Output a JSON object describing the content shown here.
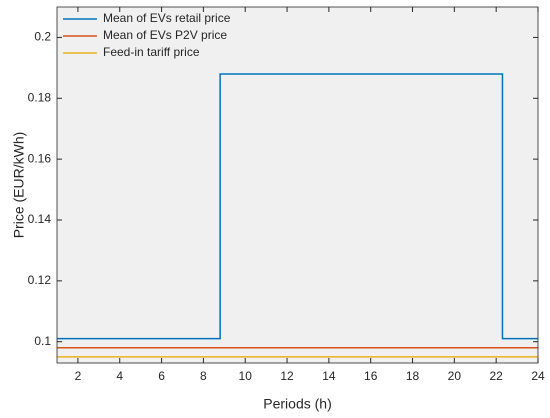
{
  "chart_data": {
    "type": "line",
    "x_label": "Periods (h)",
    "y_label": "Price (EUR/kWh)",
    "xlim": [
      1,
      24
    ],
    "ylim": [
      0.093,
      0.21
    ],
    "xticks": [
      2,
      4,
      6,
      8,
      10,
      12,
      14,
      16,
      18,
      20,
      22,
      24
    ],
    "yticks": [
      0.1,
      0.12,
      0.14,
      0.16,
      0.18,
      0.2
    ],
    "legend": "upper left",
    "series": [
      {
        "name": "Mean of EVs retail price",
        "color": "#0072bd",
        "x": [
          1,
          8.8,
          8.8,
          22.3,
          22.3,
          24
        ],
        "values": [
          0.101,
          0.101,
          0.188,
          0.188,
          0.101,
          0.101
        ]
      },
      {
        "name": "Mean of EVs P2V price",
        "color": "#d95319",
        "x": [
          1,
          24
        ],
        "values": [
          0.098,
          0.098
        ]
      },
      {
        "name": "Feed-in tariff price",
        "color": "#edb120",
        "x": [
          1,
          24
        ],
        "values": [
          0.095,
          0.095
        ]
      }
    ]
  }
}
